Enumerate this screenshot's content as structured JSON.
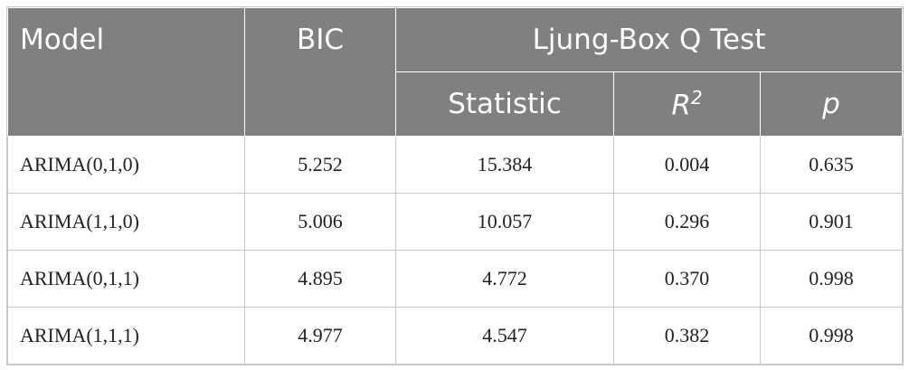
{
  "header": {
    "model": "Model",
    "bic": "BIC",
    "group": "Ljung-Box Q Test",
    "statistic": "Statistic",
    "r2": {
      "base": "R",
      "sup": "2"
    },
    "p": "p"
  },
  "table": {
    "rows": [
      [
        "ARIMA(0,1,0)",
        "5.252",
        "15.384",
        "0.004",
        "0.635"
      ],
      [
        "ARIMA(1,1,0)",
        "5.006",
        "10.057",
        "0.296",
        "0.901"
      ],
      [
        "ARIMA(0,1,1)",
        "4.895",
        "4.772",
        "0.370",
        "0.998"
      ],
      [
        "ARIMA(1,1,1)",
        "4.977",
        "4.547",
        "0.382",
        "0.998"
      ]
    ]
  }
}
